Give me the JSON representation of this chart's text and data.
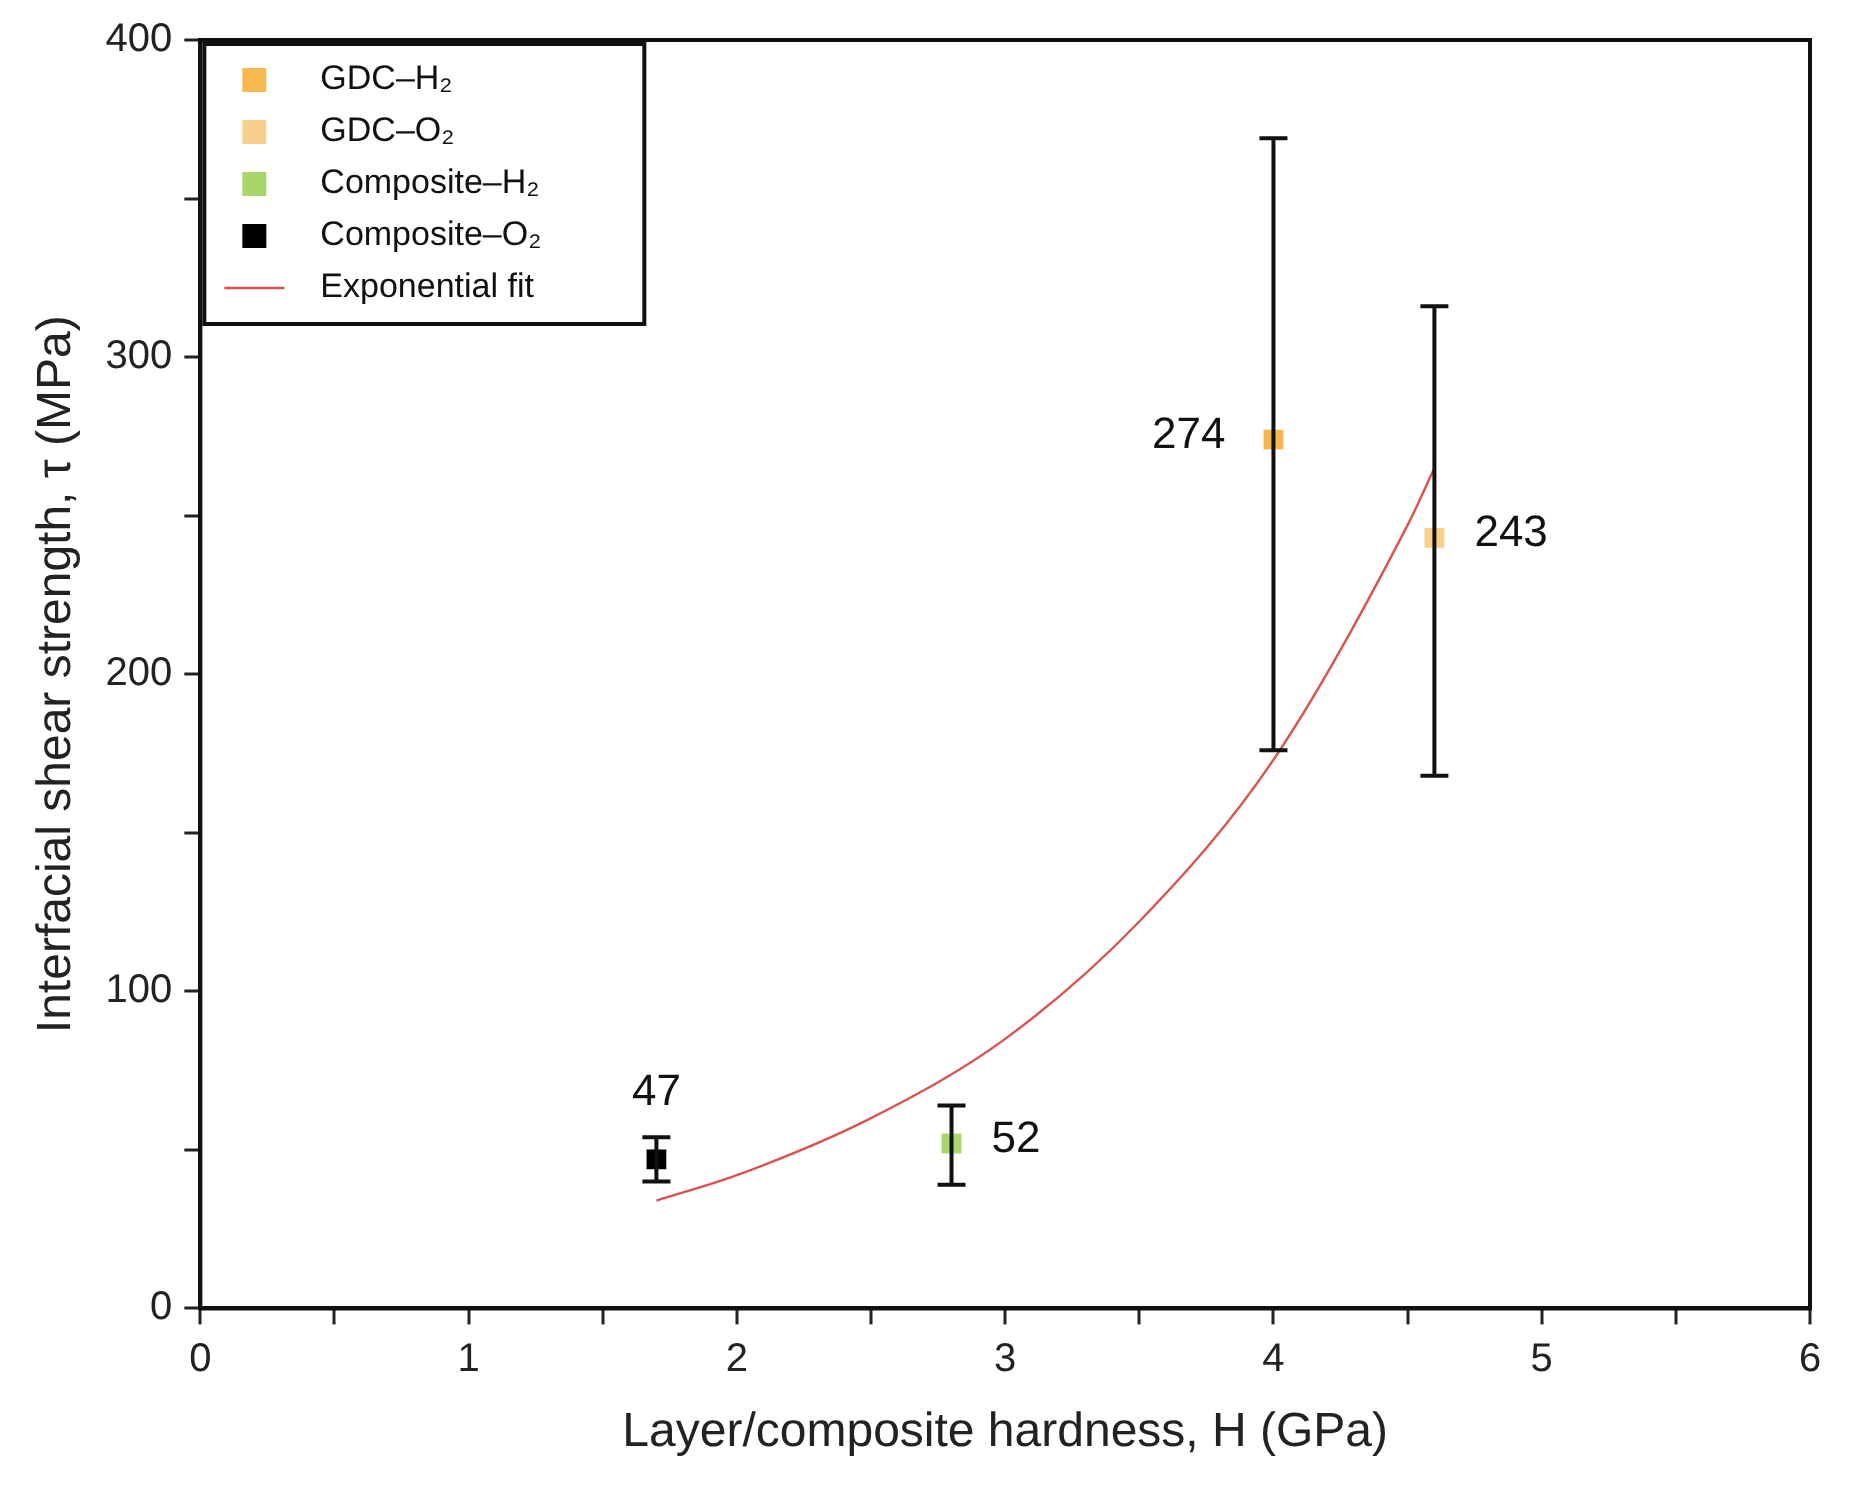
{
  "chart_data": {
    "type": "scatter",
    "xlabel": "Layer/composite hardness, H (GPa)",
    "ylabel": "Interfacial shear strength, τ (MPa)",
    "xlim": [
      0,
      6
    ],
    "xticks": [
      0,
      {
        "value": 0.5,
        "label": null
      },
      1,
      {
        "value": 1.5,
        "label": null
      },
      2,
      {
        "value": 2.5,
        "label": null
      },
      3,
      {
        "value": 3.5,
        "label": null
      },
      4,
      {
        "value": 4.5,
        "label": null
      },
      5,
      {
        "value": 5.5,
        "label": null
      },
      6
    ],
    "ylim": [
      0,
      400
    ],
    "yticks": [
      0,
      {
        "value": 50,
        "label": null
      },
      100,
      {
        "value": 150,
        "label": null
      },
      200,
      {
        "value": 250,
        "label": null
      },
      300,
      {
        "value": 350,
        "label": null
      },
      400
    ],
    "legend": "top left",
    "marker": "square",
    "series": [
      {
        "name": "GDC–H₂",
        "color": "#f7b94e",
        "x": [
          4.0
        ],
        "values": [
          274
        ],
        "errors": [
          [
            176,
            369
          ]
        ],
        "value_labels": [
          "274"
        ]
      },
      {
        "name": "GDC–O₂",
        "color": "#f9cf8c",
        "x": [
          4.6
        ],
        "values": [
          243
        ],
        "errors": [
          [
            168,
            316
          ]
        ],
        "value_labels": [
          "243"
        ]
      },
      {
        "name": "Composite–H₂",
        "color": "#a8d66a",
        "x": [
          2.8
        ],
        "values": [
          52
        ],
        "errors": [
          [
            39,
            64
          ]
        ],
        "value_labels": [
          "52"
        ]
      },
      {
        "name": "Composite–O₂",
        "color": "#000000",
        "x": [
          1.7
        ],
        "values": [
          47
        ],
        "errors": [
          [
            40,
            54
          ]
        ],
        "value_labels": [
          "47"
        ]
      },
      {
        "name": "Exponential fit",
        "type": "line",
        "marker": "none",
        "line_style": "solid",
        "color": "#d9534f",
        "x": [
          1.7,
          2.0,
          2.5,
          3.0,
          3.5,
          4.0,
          4.5,
          4.6
        ],
        "values": [
          34,
          42,
          60,
          85,
          122,
          173,
          247,
          265
        ]
      }
    ]
  }
}
